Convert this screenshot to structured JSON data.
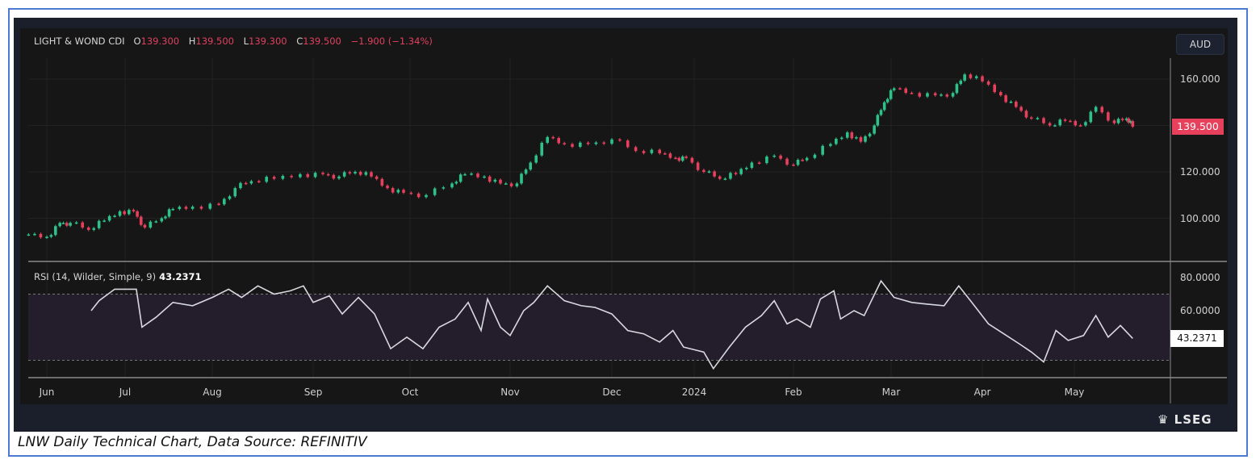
{
  "caption": "LNW Daily Technical Chart, Data Source: REFINITIV",
  "brand": "LSEG",
  "currency_button": "AUD",
  "legend": {
    "symbol": "LIGHT & WOND CDI",
    "open_label": "O",
    "open": "139.300",
    "high_label": "H",
    "high": "139.500",
    "low_label": "L",
    "low": "139.300",
    "close_label": "C",
    "close": "139.500",
    "change": "−1.900 (−1.34%)"
  },
  "rsi_legend": {
    "label": "RSI (14, Wilder, Simple, 9)",
    "value": "43.2371"
  },
  "colors": {
    "up": "#2ec28a",
    "down": "#e6405c",
    "rsi_line": "#d8d8e0",
    "rsi_band": "#241e2c",
    "background": "#161616"
  },
  "chart_data": [
    {
      "type": "candlestick",
      "title": "LIGHT & WOND CDI",
      "ylim": [
        88,
        170
      ],
      "y_ticks": [
        "100.000",
        "120.000",
        "160.000"
      ],
      "last_price_label": "139.500",
      "x_tick_labels": [
        "Jun",
        "Jul",
        "Aug",
        "Sep",
        "Oct",
        "Nov",
        "Dec",
        "2024",
        "Feb",
        "Mar",
        "Apr",
        "May"
      ],
      "grid": true,
      "closes": [
        [
          "2023-05-25",
          93
        ],
        [
          "2023-06-01",
          92
        ],
        [
          "2023-06-06",
          98
        ],
        [
          "2023-06-10",
          98
        ],
        [
          "2023-06-17",
          95
        ],
        [
          "2023-06-23",
          99
        ],
        [
          "2023-06-29",
          103
        ],
        [
          "2023-07-04",
          103
        ],
        [
          "2023-07-08",
          96
        ],
        [
          "2023-07-14",
          100
        ],
        [
          "2023-07-18",
          104
        ],
        [
          "2023-07-25",
          105
        ],
        [
          "2023-08-03",
          106
        ],
        [
          "2023-08-08",
          113
        ],
        [
          "2023-08-13",
          116
        ],
        [
          "2023-08-20",
          117
        ],
        [
          "2023-08-28",
          119
        ],
        [
          "2023-09-04",
          119
        ],
        [
          "2023-09-09",
          118
        ],
        [
          "2023-09-14",
          120
        ],
        [
          "2023-09-19",
          118
        ],
        [
          "2023-09-24",
          113
        ],
        [
          "2023-09-29",
          111
        ],
        [
          "2023-10-06",
          110
        ],
        [
          "2023-10-14",
          115
        ],
        [
          "2023-10-18",
          119
        ],
        [
          "2023-10-24",
          118
        ],
        [
          "2023-10-29",
          115
        ],
        [
          "2023-11-03",
          115
        ],
        [
          "2023-11-07",
          124
        ],
        [
          "2023-11-12",
          135
        ],
        [
          "2023-11-17",
          132
        ],
        [
          "2023-11-24",
          132
        ],
        [
          "2023-12-01",
          134
        ],
        [
          "2023-12-10",
          129
        ],
        [
          "2023-12-19",
          128
        ],
        [
          "2023-12-25",
          126
        ],
        [
          "2023-12-29",
          126
        ],
        [
          "2024-01-04",
          120
        ],
        [
          "2024-01-09",
          117
        ],
        [
          "2024-01-14",
          119
        ],
        [
          "2024-01-19",
          124
        ],
        [
          "2024-01-26",
          127
        ],
        [
          "2024-02-01",
          123
        ],
        [
          "2024-02-05",
          126
        ],
        [
          "2024-02-12",
          132
        ],
        [
          "2024-02-17",
          137
        ],
        [
          "2024-02-21",
          133
        ],
        [
          "2024-02-25",
          140
        ],
        [
          "2024-02-28",
          150
        ],
        [
          "2024-03-02",
          156
        ],
        [
          "2024-03-08",
          154
        ],
        [
          "2024-03-16",
          153
        ],
        [
          "2024-03-22",
          154
        ],
        [
          "2024-03-26",
          162
        ],
        [
          "2024-04-01",
          159
        ],
        [
          "2024-04-07",
          153
        ],
        [
          "2024-04-12",
          148
        ],
        [
          "2024-04-17",
          143
        ],
        [
          "2024-04-23",
          140
        ],
        [
          "2024-04-28",
          142
        ],
        [
          "2024-05-03",
          140
        ],
        [
          "2024-05-08",
          148
        ],
        [
          "2024-05-14",
          141
        ],
        [
          "2024-05-18",
          143
        ],
        [
          "2024-05-20",
          139.5
        ]
      ]
    },
    {
      "type": "line",
      "title": "RSI (14, Wilder, Simple, 9)",
      "ylim": [
        20,
        90
      ],
      "y_ticks": [
        "60.0000",
        "80.0000"
      ],
      "bands": [
        30,
        70
      ],
      "last_value_label": "43.2371",
      "values": [
        [
          "2023-06-18",
          60
        ],
        [
          "2023-06-21",
          66
        ],
        [
          "2023-06-27",
          73
        ],
        [
          "2023-07-05",
          73
        ],
        [
          "2023-07-07",
          50
        ],
        [
          "2023-07-12",
          56
        ],
        [
          "2023-07-18",
          65
        ],
        [
          "2023-07-25",
          63
        ],
        [
          "2023-08-01",
          68
        ],
        [
          "2023-08-06",
          73
        ],
        [
          "2023-08-10",
          68
        ],
        [
          "2023-08-15",
          75
        ],
        [
          "2023-08-20",
          70
        ],
        [
          "2023-08-25",
          72
        ],
        [
          "2023-08-29",
          75
        ],
        [
          "2023-09-01",
          65
        ],
        [
          "2023-09-06",
          69
        ],
        [
          "2023-09-10",
          58
        ],
        [
          "2023-09-15",
          68
        ],
        [
          "2023-09-20",
          58
        ],
        [
          "2023-09-25",
          37
        ],
        [
          "2023-09-30",
          44
        ],
        [
          "2023-10-05",
          37
        ],
        [
          "2023-10-10",
          50
        ],
        [
          "2023-10-15",
          55
        ],
        [
          "2023-10-19",
          65
        ],
        [
          "2023-10-23",
          48
        ],
        [
          "2023-10-25",
          67
        ],
        [
          "2023-10-29",
          50
        ],
        [
          "2023-11-01",
          45
        ],
        [
          "2023-11-05",
          60
        ],
        [
          "2023-11-08",
          65
        ],
        [
          "2023-11-12",
          75
        ],
        [
          "2023-11-17",
          66
        ],
        [
          "2023-11-22",
          63
        ],
        [
          "2023-11-26",
          62
        ],
        [
          "2023-12-01",
          58
        ],
        [
          "2023-12-07",
          48
        ],
        [
          "2023-12-13",
          46
        ],
        [
          "2023-12-19",
          41
        ],
        [
          "2023-12-24",
          48
        ],
        [
          "2023-12-28",
          38
        ],
        [
          "2024-01-04",
          35
        ],
        [
          "2024-01-07",
          25
        ],
        [
          "2024-01-12",
          38
        ],
        [
          "2024-01-17",
          50
        ],
        [
          "2024-01-22",
          57
        ],
        [
          "2024-01-26",
          66
        ],
        [
          "2024-01-30",
          52
        ],
        [
          "2024-02-02",
          55
        ],
        [
          "2024-02-06",
          50
        ],
        [
          "2024-02-09",
          67
        ],
        [
          "2024-02-13",
          72
        ],
        [
          "2024-02-15",
          55
        ],
        [
          "2024-02-19",
          60
        ],
        [
          "2024-02-22",
          57
        ],
        [
          "2024-02-27",
          78
        ],
        [
          "2024-03-02",
          68
        ],
        [
          "2024-03-08",
          65
        ],
        [
          "2024-03-13",
          64
        ],
        [
          "2024-03-19",
          63
        ],
        [
          "2024-03-24",
          75
        ],
        [
          "2024-03-28",
          66
        ],
        [
          "2024-04-03",
          52
        ],
        [
          "2024-04-08",
          46
        ],
        [
          "2024-04-13",
          40
        ],
        [
          "2024-04-17",
          35
        ],
        [
          "2024-04-21",
          29
        ],
        [
          "2024-04-25",
          48
        ],
        [
          "2024-04-29",
          42
        ],
        [
          "2024-05-04",
          45
        ],
        [
          "2024-05-08",
          57
        ],
        [
          "2024-05-12",
          44
        ],
        [
          "2024-05-16",
          51
        ],
        [
          "2024-05-20",
          43.2371
        ]
      ]
    }
  ]
}
